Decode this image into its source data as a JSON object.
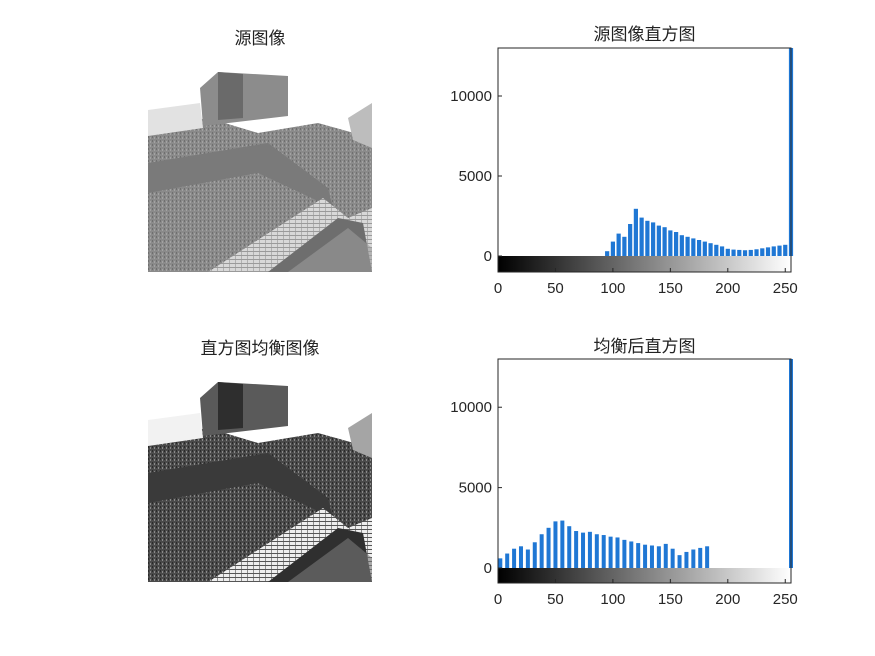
{
  "panels": {
    "source_image_title": "源图像",
    "equalized_image_title": "直方图均衡图像"
  },
  "chart_data": [
    {
      "type": "bar",
      "title": "源图像直方图",
      "xlabel": "",
      "ylabel": "",
      "xlim": [
        0,
        255
      ],
      "ylim": [
        -1200,
        13000
      ],
      "xticks": [
        0,
        50,
        100,
        150,
        200,
        250
      ],
      "yticks": [
        0,
        5000,
        10000
      ],
      "bar_color": "#1f77d4",
      "grid": false,
      "colorbar": "grayscale 0-255 below axis",
      "x": [
        95,
        100,
        105,
        110,
        115,
        120,
        125,
        130,
        135,
        140,
        145,
        150,
        155,
        160,
        165,
        170,
        175,
        180,
        185,
        190,
        195,
        200,
        205,
        210,
        215,
        220,
        225,
        230,
        235,
        240,
        245,
        250,
        255
      ],
      "values": [
        300,
        900,
        1400,
        1200,
        2000,
        2950,
        2400,
        2200,
        2100,
        1900,
        1800,
        1600,
        1500,
        1300,
        1200,
        1100,
        1000,
        900,
        800,
        700,
        600,
        450,
        400,
        380,
        360,
        380,
        420,
        480,
        540,
        600,
        650,
        700,
        13800
      ]
    },
    {
      "type": "bar",
      "title": "均衡后直方图",
      "xlabel": "",
      "ylabel": "",
      "xlim": [
        0,
        255
      ],
      "ylim": [
        -1200,
        13000
      ],
      "xticks": [
        0,
        50,
        100,
        150,
        200,
        250
      ],
      "yticks": [
        0,
        5000,
        10000
      ],
      "bar_color": "#1f77d4",
      "grid": false,
      "colorbar": "grayscale 0-255 below axis",
      "x": [
        2,
        8,
        14,
        20,
        26,
        32,
        38,
        44,
        50,
        56,
        62,
        68,
        74,
        80,
        86,
        92,
        98,
        104,
        110,
        116,
        122,
        128,
        134,
        140,
        146,
        152,
        158,
        164,
        170,
        176,
        182,
        255
      ],
      "values": [
        600,
        900,
        1200,
        1350,
        1150,
        1600,
        2100,
        2500,
        2900,
        2950,
        2600,
        2300,
        2200,
        2250,
        2100,
        2050,
        1950,
        1900,
        1750,
        1650,
        1550,
        1450,
        1400,
        1350,
        1500,
        1200,
        800,
        1000,
        1150,
        1250,
        1350,
        13800
      ]
    }
  ]
}
